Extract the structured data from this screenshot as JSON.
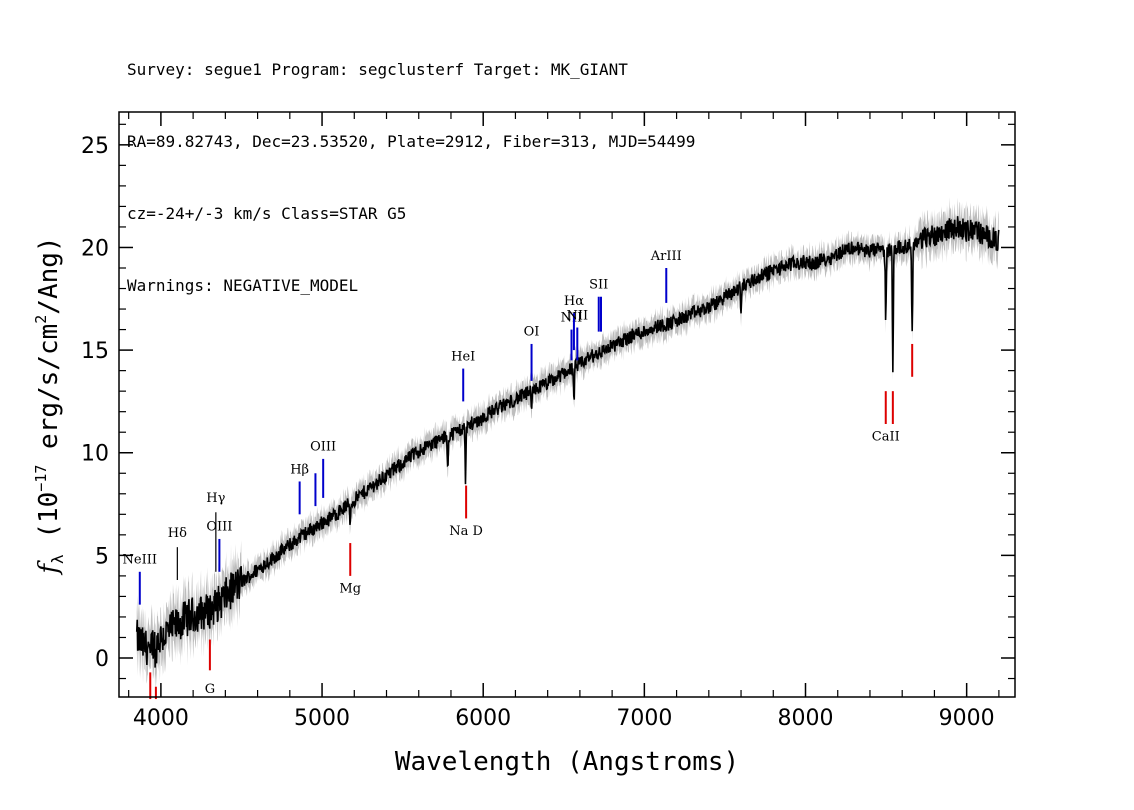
{
  "header": {
    "line1": "Survey: segue1 Program: segclusterf Target: MK_GIANT",
    "line2": "RA=89.82743, Dec=23.53520, Plate=2912, Fiber=313, MJD=54499",
    "line3": "cz=-24+/-3 km/s Class=STAR G5",
    "line4": "Warnings: NEGATIVE_MODEL"
  },
  "chart_data": {
    "type": "line",
    "xlabel": "Wavelength (Angstroms)",
    "ylabel": "f_λ (10^-17 erg/s/cm^2/Ang)",
    "xlim": [
      3740,
      9300
    ],
    "ylim": [
      -1.9,
      26.6
    ],
    "x_ticks": [
      4000,
      5000,
      6000,
      7000,
      8000,
      9000
    ],
    "y_ticks": [
      0,
      5,
      10,
      15,
      20,
      25
    ],
    "colors": {
      "spectrum": "#000000",
      "error_band": "#bdbdbd",
      "emission": "#0000cc",
      "absorption": "#dd0000"
    },
    "series": [
      {
        "x": [
          3850,
          3900,
          3950,
          4000,
          4050,
          4100,
          4150,
          4200,
          4250,
          4300,
          4350,
          4400,
          4450,
          4500,
          4550,
          4600,
          4650,
          4700,
          4750,
          4800,
          4850,
          4900,
          4950,
          5000,
          5050,
          5100,
          5150,
          5200,
          5250,
          5300,
          5350,
          5400,
          5450,
          5500,
          5550,
          5600,
          5650,
          5700,
          5750,
          5800,
          5850,
          5900,
          5950,
          6000,
          6050,
          6100,
          6150,
          6200,
          6250,
          6300,
          6350,
          6400,
          6450,
          6500,
          6550,
          6600,
          6650,
          6700,
          6750,
          6800,
          6850,
          6900,
          6950,
          7000,
          7050,
          7100,
          7150,
          7200,
          7250,
          7300,
          7350,
          7400,
          7450,
          7500,
          7550,
          7600,
          7650,
          7700,
          7750,
          7800,
          7850,
          7900,
          7950,
          8000,
          8050,
          8100,
          8150,
          8200,
          8250,
          8300,
          8350,
          8400,
          8450,
          8500,
          8550,
          8600,
          8650,
          8700,
          8750,
          8800,
          8850,
          8900,
          8950,
          9000,
          9050,
          9100,
          9150,
          9200
        ],
        "y": [
          1.0,
          0.5,
          0.7,
          1.0,
          1.3,
          1.6,
          1.9,
          2.1,
          2.2,
          2.3,
          2.6,
          3.0,
          3.4,
          3.7,
          4.0,
          4.3,
          4.6,
          4.9,
          5.2,
          5.5,
          5.8,
          6.1,
          6.3,
          6.6,
          6.8,
          7.1,
          7.4,
          7.7,
          8.0,
          8.3,
          8.6,
          8.9,
          9.2,
          9.5,
          9.8,
          10.1,
          10.3,
          10.5,
          10.7,
          10.9,
          11.1,
          11.3,
          11.5,
          11.7,
          12.0,
          12.2,
          12.4,
          12.6,
          12.8,
          13.0,
          13.2,
          13.4,
          13.6,
          13.9,
          14.1,
          14.3,
          14.6,
          14.8,
          15.0,
          15.2,
          15.4,
          15.6,
          15.8,
          15.9,
          16.1,
          16.2,
          16.3,
          16.4,
          16.6,
          16.8,
          16.9,
          17.1,
          17.3,
          17.6,
          17.8,
          18.1,
          18.3,
          18.5,
          18.7,
          18.9,
          19.0,
          19.2,
          19.2,
          19.3,
          19.2,
          19.4,
          19.5,
          19.7,
          19.9,
          20.0,
          19.9,
          19.8,
          19.9,
          19.8,
          20.0,
          20.0,
          20.1,
          20.3,
          20.5,
          20.6,
          20.8,
          20.9,
          21.0,
          20.8,
          20.9,
          20.6,
          20.5,
          20.3
        ]
      }
    ],
    "absorption_features": [
      {
        "x": 8498,
        "depth": 3.5
      },
      {
        "x": 8542,
        "depth": 6.0
      },
      {
        "x": 8662,
        "depth": 4.5
      },
      {
        "x": 5890,
        "depth": 2.5
      },
      {
        "x": 5780,
        "depth": 1.5
      },
      {
        "x": 6563,
        "depth": 1.8
      },
      {
        "x": 6300,
        "depth": 1.2
      },
      {
        "x": 5175,
        "depth": 1.0
      },
      {
        "x": 7600,
        "depth": 1.2
      },
      {
        "x": 3933,
        "depth": 1.2
      },
      {
        "x": 3968,
        "depth": 1.0
      }
    ],
    "line_markers": [
      {
        "label": "NeIII",
        "x": 3869,
        "y0": 2.6,
        "y1": 4.2,
        "label_y": 4.6,
        "color": "#0000cc"
      },
      {
        "label": "Hδ",
        "x": 4102,
        "y0": 3.8,
        "y1": 5.4,
        "label_y": 5.9,
        "color": "#000000"
      },
      {
        "label": "Hγ",
        "x": 4341,
        "y0": 4.2,
        "y1": 7.1,
        "label_y": 7.6,
        "color": "#000000"
      },
      {
        "label": "OIII",
        "x": 4363,
        "y0": 4.2,
        "y1": 5.8,
        "label_y": 6.2,
        "color": "#0000cc"
      },
      {
        "label": "Hβ",
        "x": 4861,
        "y0": 7.0,
        "y1": 8.6,
        "label_y": 9.0,
        "color": "#0000cc"
      },
      {
        "label": "",
        "x": 4959,
        "y0": 7.4,
        "y1": 9.0,
        "label_y": 0,
        "color": "#0000cc"
      },
      {
        "label": "OIII",
        "x": 5007,
        "y0": 7.8,
        "y1": 9.7,
        "label_y": 10.1,
        "color": "#0000cc"
      },
      {
        "label": "HeI",
        "x": 5876,
        "y0": 12.5,
        "y1": 14.1,
        "label_y": 14.5,
        "color": "#0000cc"
      },
      {
        "label": "OI",
        "x": 6300,
        "y0": 13.5,
        "y1": 15.3,
        "label_y": 15.7,
        "color": "#0000cc"
      },
      {
        "label": "NII",
        "x": 6548,
        "y0": 14.5,
        "y1": 16.0,
        "label_y": 16.4,
        "color": "#0000cc"
      },
      {
        "label": "Hα",
        "x": 6563,
        "y0": 15.0,
        "y1": 16.8,
        "label_y": 17.2,
        "color": "#0000cc"
      },
      {
        "label": "NII",
        "x": 6584,
        "y0": 14.5,
        "y1": 16.1,
        "label_y": 16.5,
        "color": "#0000cc"
      },
      {
        "label": "SII",
        "x": 6717,
        "y0": 15.9,
        "y1": 17.6,
        "label_y": 18.0,
        "color": "#0000cc"
      },
      {
        "label": "",
        "x": 6731,
        "y0": 15.9,
        "y1": 17.6,
        "label_y": 0,
        "color": "#0000cc"
      },
      {
        "label": "ArIII",
        "x": 7136,
        "y0": 17.3,
        "y1": 19.0,
        "label_y": 19.4,
        "color": "#0000cc"
      },
      {
        "label": "G",
        "x": 4304,
        "y0": -0.6,
        "y1": 0.9,
        "label_y": -1.7,
        "color": "#dd0000"
      },
      {
        "label": "",
        "x": 3934,
        "y0": -2.0,
        "y1": -0.7,
        "label_y": 0,
        "color": "#dd0000"
      },
      {
        "label": "",
        "x": 3969,
        "y0": -2.0,
        "y1": -1.4,
        "label_y": 0,
        "color": "#dd0000"
      },
      {
        "label": "Mg",
        "x": 5175,
        "y0": 4.0,
        "y1": 5.6,
        "label_y": 3.2,
        "color": "#dd0000"
      },
      {
        "label": "Na D",
        "x": 5894,
        "y0": 6.8,
        "y1": 8.4,
        "label_y": 6.0,
        "color": "#dd0000"
      },
      {
        "label": "CaII",
        "x": 8498,
        "y0": 11.4,
        "y1": 13.0,
        "label_y": 10.6,
        "color": "#dd0000"
      },
      {
        "label": "",
        "x": 8542,
        "y0": 11.4,
        "y1": 13.0,
        "label_y": 0,
        "color": "#dd0000"
      },
      {
        "label": "",
        "x": 8662,
        "y0": 13.7,
        "y1": 15.3,
        "label_y": 0,
        "color": "#dd0000"
      }
    ]
  }
}
